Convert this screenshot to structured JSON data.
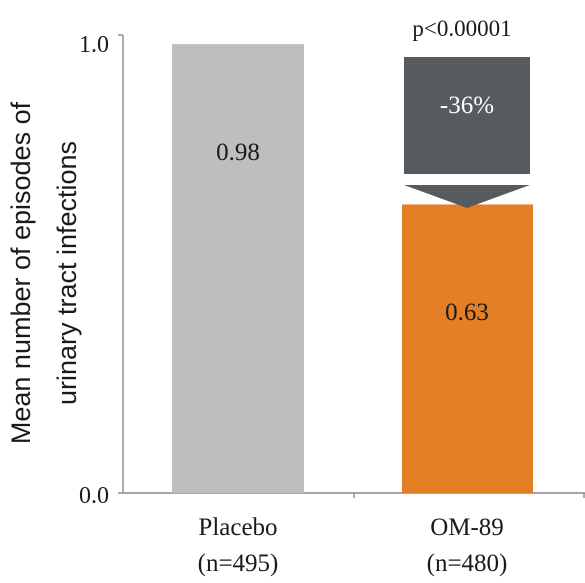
{
  "chart_data": {
    "type": "bar",
    "title": "",
    "xlabel": "",
    "ylabel": [
      "Mean number of episodes of",
      "urinary tract infections"
    ],
    "ylim": [
      0,
      1
    ],
    "y_ticks": [
      "0.0",
      "1.0"
    ],
    "categories": [
      {
        "name": "Placebo",
        "sub": "(n=495)"
      },
      {
        "name": "OM-89",
        "sub": "(n=480)"
      }
    ],
    "values": [
      0.98,
      0.63
    ],
    "value_labels": [
      "0.98",
      "0.63"
    ],
    "colors": [
      "#bebebe",
      "#e47f25"
    ],
    "annotations": {
      "p_value": "p<0.00001",
      "reduction": "-36%",
      "reduction_color": "#585b5d"
    },
    "grid": false,
    "legend": "none"
  }
}
